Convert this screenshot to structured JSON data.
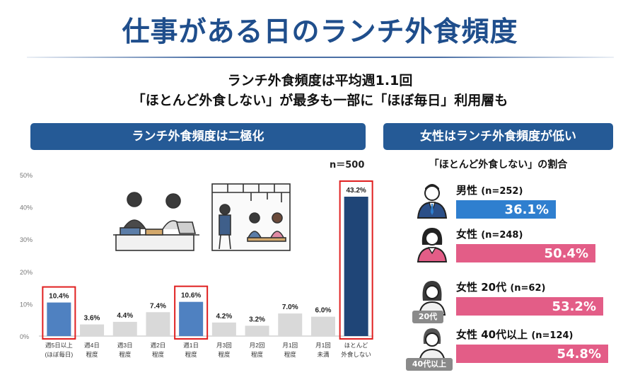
{
  "title": "仕事がある日のランチ外食頻度",
  "subtitle_line1": "ランチ外食頻度は平均週1.1回",
  "subtitle_line2": "「ほとんど外食しない」が最多も一部に「ほぼ毎日」利用層も",
  "left_header": "ランチ外食頻度は二極化",
  "right_header": "女性はランチ外食頻度が低い",
  "sample_size": "n＝500",
  "right_subtitle": "「ほとんど外食しない」の割合",
  "colors": {
    "title": "#1f4e8c",
    "header_bg": "#255a96",
    "bar_highlight_blue": "#4f81c1",
    "bar_navy": "#1f4577",
    "bar_gray": "#d9d9d9",
    "highlight_box": "#e02020",
    "male_bar": "#2f7fcf",
    "female_bar": "#e35d87"
  },
  "chart_data": [
    {
      "type": "bar",
      "categories": [
        "週5日以上\n(ほぼ毎日)",
        "週4日\n程度",
        "週3日\n程度",
        "週2日\n程度",
        "週1日\n程度",
        "月3回\n程度",
        "月2回\n程度",
        "月1回\n程度",
        "月1回\n未満",
        "ほとんど\n外食しない"
      ],
      "values": [
        10.4,
        3.6,
        4.4,
        7.4,
        10.6,
        4.2,
        3.2,
        7.0,
        6.0,
        43.2
      ],
      "data_labels": [
        "10.4%",
        "3.6%",
        "4.4%",
        "7.4%",
        "10.6%",
        "4.2%",
        "3.2%",
        "7.0%",
        "6.0%",
        "43.2%"
      ],
      "highlighted": [
        0,
        4,
        9
      ],
      "yticks": [
        "0%",
        "10%",
        "20%",
        "30%",
        "40%",
        "50%"
      ],
      "ylim": [
        0,
        50
      ],
      "grid": false
    },
    {
      "type": "bar",
      "orientation": "horizontal",
      "categories": [
        {
          "label": "男性",
          "n": "(n=252)",
          "tag": "",
          "icon": "male-icon",
          "color": "#2f7fcf"
        },
        {
          "label": "女性",
          "n": "(n=248)",
          "tag": "",
          "icon": "female-icon",
          "color": "#e35d87"
        },
        {
          "label": "女性 20代",
          "n": "(n=62)",
          "tag": "20代",
          "icon": "young-woman-icon",
          "color": "#e35d87"
        },
        {
          "label": "女性 40代以上",
          "n": "(n=124)",
          "tag": "40代以上",
          "icon": "older-woman-icon",
          "color": "#e35d87"
        }
      ],
      "values": [
        36.1,
        50.4,
        53.2,
        54.8
      ],
      "data_labels": [
        "36.1%",
        "50.4%",
        "53.2%",
        "54.8%"
      ]
    }
  ]
}
